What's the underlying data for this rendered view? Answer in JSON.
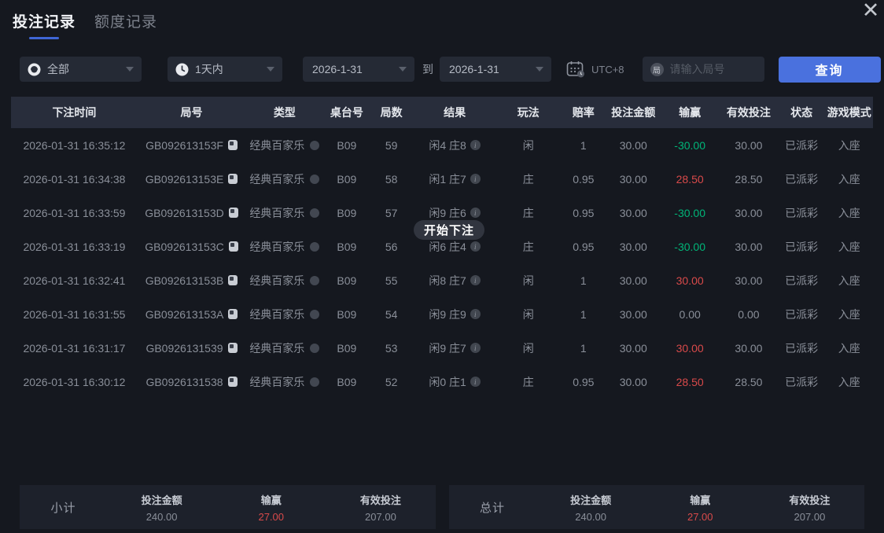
{
  "tabs": [
    {
      "label": "投注记录",
      "active": true
    },
    {
      "label": "额度记录",
      "active": false
    }
  ],
  "icons": {
    "close": "✕"
  },
  "filters": {
    "game_type_value": "全部",
    "time_range_value": "1天内",
    "date_from": "2026-1-31",
    "to_label": "到",
    "date_to": "2026-1-31",
    "timezone": "UTC+8",
    "round_badge_char": "局",
    "round_input_placeholder": "请输入局号",
    "search_button": "查询"
  },
  "table": {
    "headers": [
      "下注时间",
      "局号",
      "类型",
      "桌台号",
      "局数",
      "结果",
      "玩法",
      "赔率",
      "投注金额",
      "输赢",
      "有效投注",
      "状态",
      "游戏模式"
    ],
    "rows": [
      {
        "time": "2026-01-31 16:35:12",
        "round_id": "GB092613153F",
        "type": "经典百家乐",
        "table_no": "B09",
        "round_no": "59",
        "result": "闲4 庄8",
        "play": "闲",
        "odds": "1",
        "amount": "30.00",
        "winloss": "-30.00",
        "winloss_color": "green",
        "valid": "30.00",
        "status": "已派彩",
        "mode": "入座"
      },
      {
        "time": "2026-01-31 16:34:38",
        "round_id": "GB092613153E",
        "type": "经典百家乐",
        "table_no": "B09",
        "round_no": "58",
        "result": "闲1 庄7",
        "play": "庄",
        "odds": "0.95",
        "amount": "30.00",
        "winloss": "28.50",
        "winloss_color": "red",
        "valid": "28.50",
        "status": "已派彩",
        "mode": "入座"
      },
      {
        "time": "2026-01-31 16:33:59",
        "round_id": "GB092613153D",
        "type": "经典百家乐",
        "table_no": "B09",
        "round_no": "57",
        "result": "闲9 庄6",
        "play": "庄",
        "odds": "0.95",
        "amount": "30.00",
        "winloss": "-30.00",
        "winloss_color": "green",
        "valid": "30.00",
        "status": "已派彩",
        "mode": "入座"
      },
      {
        "time": "2026-01-31 16:33:19",
        "round_id": "GB092613153C",
        "type": "经典百家乐",
        "table_no": "B09",
        "round_no": "56",
        "result": "闲6 庄4",
        "play": "庄",
        "odds": "0.95",
        "amount": "30.00",
        "winloss": "-30.00",
        "winloss_color": "green",
        "valid": "30.00",
        "status": "已派彩",
        "mode": "入座"
      },
      {
        "time": "2026-01-31 16:32:41",
        "round_id": "GB092613153B",
        "type": "经典百家乐",
        "table_no": "B09",
        "round_no": "55",
        "result": "闲8 庄7",
        "play": "闲",
        "odds": "1",
        "amount": "30.00",
        "winloss": "30.00",
        "winloss_color": "red",
        "valid": "30.00",
        "status": "已派彩",
        "mode": "入座"
      },
      {
        "time": "2026-01-31 16:31:55",
        "round_id": "GB092613153A",
        "type": "经典百家乐",
        "table_no": "B09",
        "round_no": "54",
        "result": "闲9 庄9",
        "play": "闲",
        "odds": "1",
        "amount": "30.00",
        "winloss": "0.00",
        "winloss_color": "gray",
        "valid": "0.00",
        "status": "已派彩",
        "mode": "入座"
      },
      {
        "time": "2026-01-31 16:31:17",
        "round_id": "GB0926131539",
        "type": "经典百家乐",
        "table_no": "B09",
        "round_no": "53",
        "result": "闲9 庄7",
        "play": "闲",
        "odds": "1",
        "amount": "30.00",
        "winloss": "30.00",
        "winloss_color": "red",
        "valid": "30.00",
        "status": "已派彩",
        "mode": "入座"
      },
      {
        "time": "2026-01-31 16:30:12",
        "round_id": "GB0926131538",
        "type": "经典百家乐",
        "table_no": "B09",
        "round_no": "52",
        "result": "闲0 庄1",
        "play": "庄",
        "odds": "0.95",
        "amount": "30.00",
        "winloss": "28.50",
        "winloss_color": "red",
        "valid": "28.50",
        "status": "已派彩",
        "mode": "入座"
      }
    ]
  },
  "tooltip": {
    "text": "开始下注"
  },
  "summary": {
    "subtotal": {
      "label": "小计",
      "stats": [
        {
          "label": "投注金额",
          "value": "240.00",
          "color": "gray"
        },
        {
          "label": "输赢",
          "value": "27.00",
          "color": "red"
        },
        {
          "label": "有效投注",
          "value": "207.00",
          "color": "gray"
        }
      ]
    },
    "total": {
      "label": "总计",
      "stats": [
        {
          "label": "投注金额",
          "value": "240.00",
          "color": "gray"
        },
        {
          "label": "输赢",
          "value": "27.00",
          "color": "red"
        },
        {
          "label": "有效投注",
          "value": "207.00",
          "color": "gray"
        }
      ]
    }
  },
  "colors": {
    "accent_blue": "#4a71de",
    "win_red": "#d94a4a",
    "loss_green": "#00b578"
  }
}
